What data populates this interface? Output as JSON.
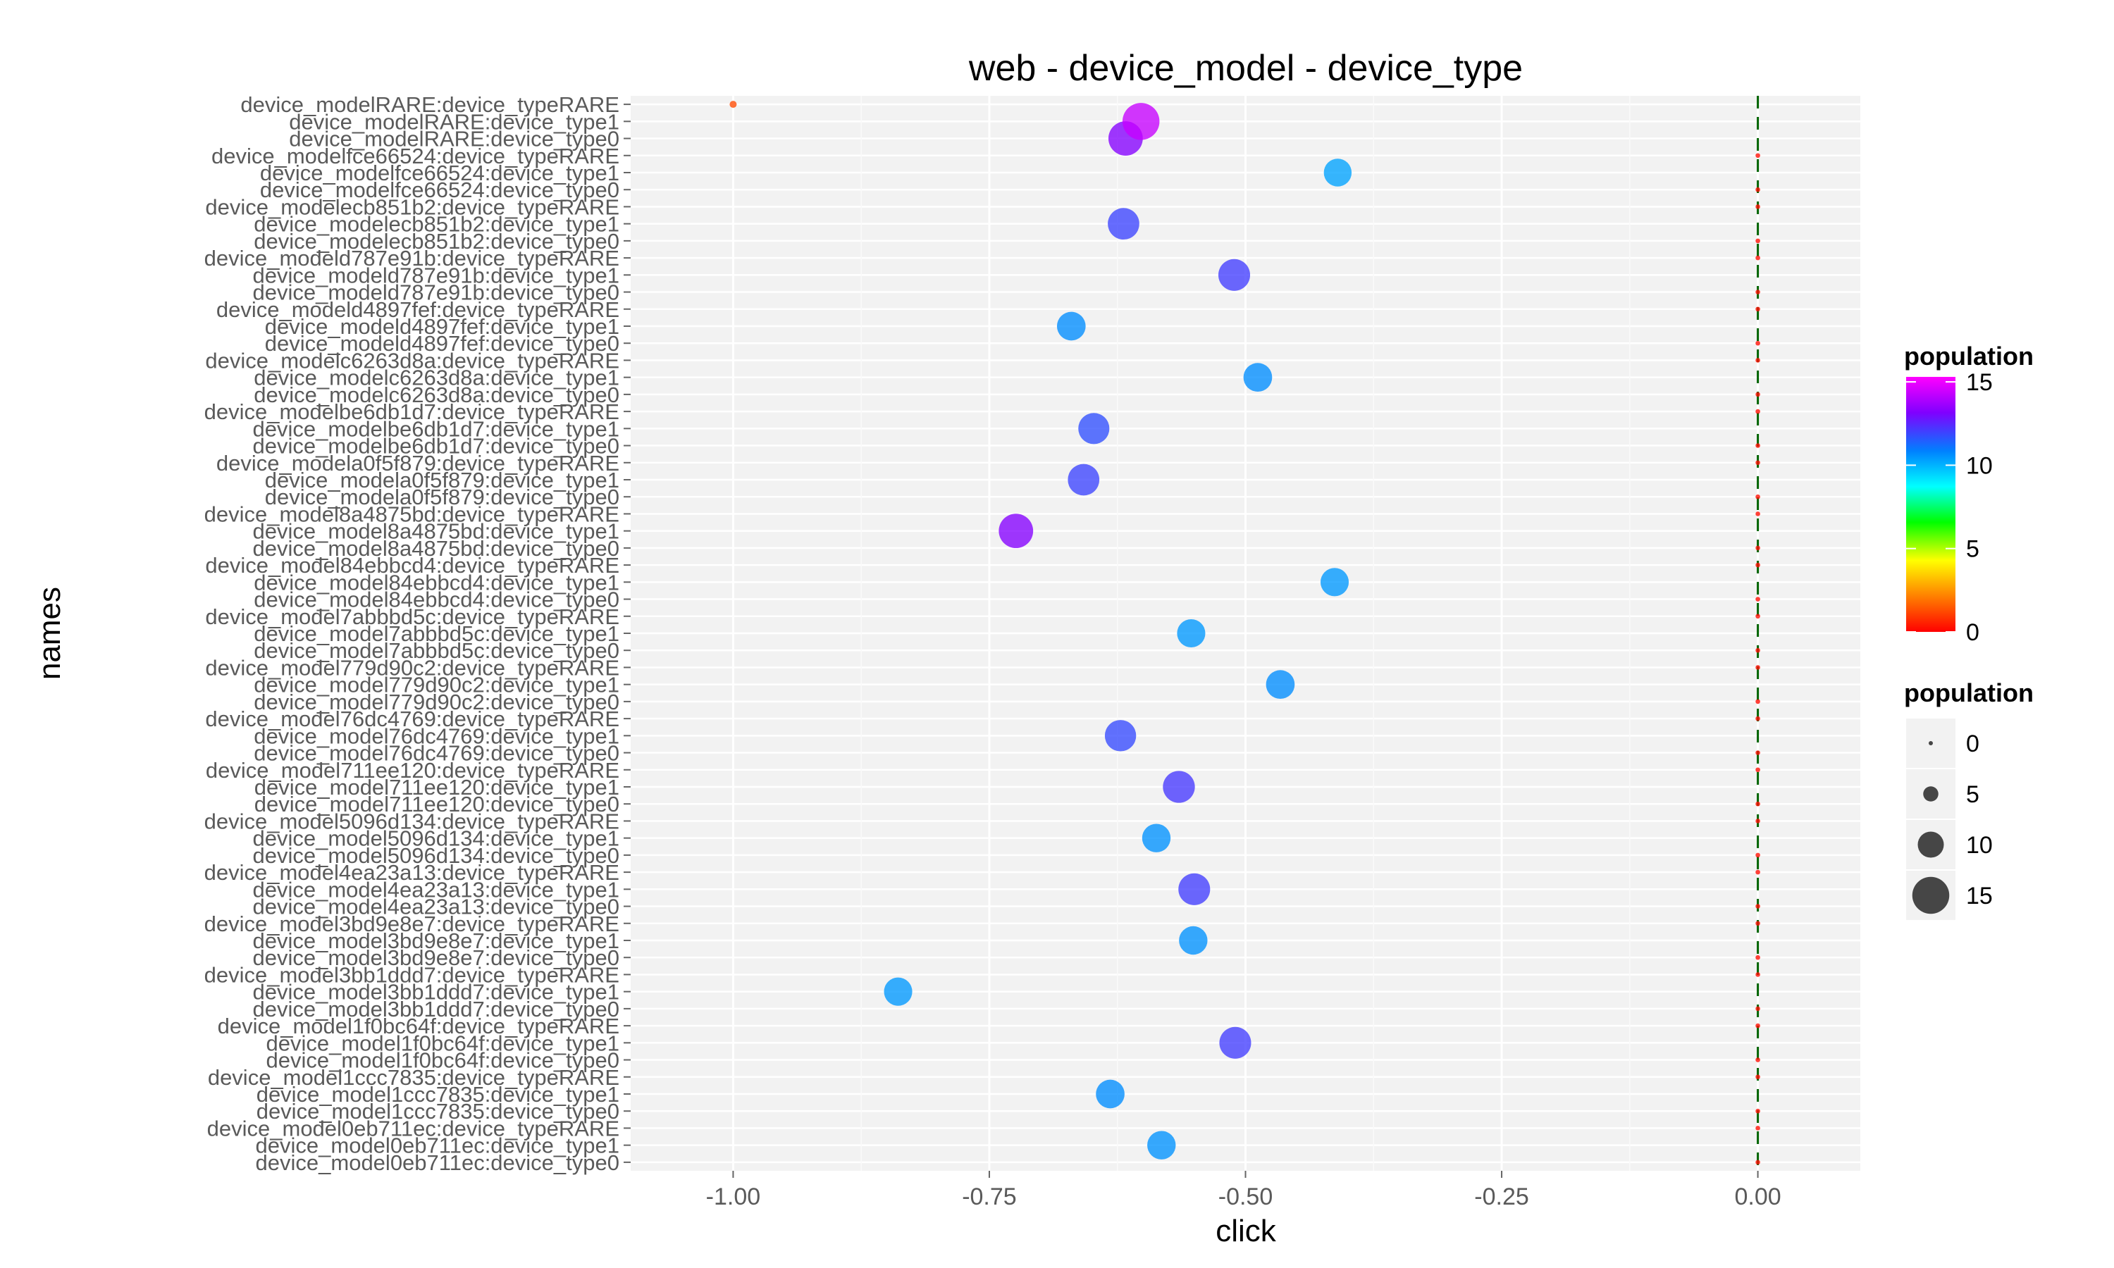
{
  "chart_data": {
    "type": "scatter",
    "title": "web - device_model - device_type",
    "xlabel": "click",
    "ylabel": "names",
    "xlim": [
      -1.1,
      0.1
    ],
    "x_ticks": [
      -1.0,
      -0.75,
      -0.5,
      -0.25,
      0.0
    ],
    "x_tick_labels": [
      "-1.00",
      "-0.75",
      "-0.50",
      "-0.25",
      "0.00"
    ],
    "reference_line_x": 0.0,
    "grid": true,
    "legend_placement": "right",
    "color_legend": {
      "title": "population",
      "breaks": [
        0,
        5,
        10,
        15
      ],
      "labels": [
        "0",
        "5",
        "10",
        "15"
      ],
      "colors": [
        "#ff0000",
        "#ff8000",
        "#ffff00",
        "#00ff00",
        "#00ffff",
        "#0080ff",
        "#8000ff",
        "#ff00ff"
      ]
    },
    "size_legend": {
      "title": "population",
      "breaks": [
        0,
        5,
        10,
        15
      ],
      "labels": [
        "0",
        "5",
        "10",
        "15"
      ]
    },
    "names": [
      "device_modelRARE:device_typeRARE",
      "device_modelRARE:device_type1",
      "device_modelRARE:device_type0",
      "device_modelfce66524:device_typeRARE",
      "device_modelfce66524:device_type1",
      "device_modelfce66524:device_type0",
      "device_modelecb851b2:device_typeRARE",
      "device_modelecb851b2:device_type1",
      "device_modelecb851b2:device_type0",
      "device_modeld787e91b:device_typeRARE",
      "device_modeld787e91b:device_type1",
      "device_modeld787e91b:device_type0",
      "device_modeld4897fef:device_typeRARE",
      "device_modeld4897fef:device_type1",
      "device_modeld4897fef:device_type0",
      "device_modelc6263d8a:device_typeRARE",
      "device_modelc6263d8a:device_type1",
      "device_modelc6263d8a:device_type0",
      "device_modelbe6db1d7:device_typeRARE",
      "device_modelbe6db1d7:device_type1",
      "device_modelbe6db1d7:device_type0",
      "device_modela0f5f879:device_typeRARE",
      "device_modela0f5f879:device_type1",
      "device_modela0f5f879:device_type0",
      "device_model8a4875bd:device_typeRARE",
      "device_model8a4875bd:device_type1",
      "device_model8a4875bd:device_type0",
      "device_model84ebbcd4:device_typeRARE",
      "device_model84ebbcd4:device_type1",
      "device_model84ebbcd4:device_type0",
      "device_model7abbbd5c:device_typeRARE",
      "device_model7abbbd5c:device_type1",
      "device_model7abbbd5c:device_type0",
      "device_model779d90c2:device_typeRARE",
      "device_model779d90c2:device_type1",
      "device_model779d90c2:device_type0",
      "device_model76dc4769:device_typeRARE",
      "device_model76dc4769:device_type1",
      "device_model76dc4769:device_type0",
      "device_model711ee120:device_typeRARE",
      "device_model711ee120:device_type1",
      "device_model711ee120:device_type0",
      "device_model5096d134:device_typeRARE",
      "device_model5096d134:device_type1",
      "device_model5096d134:device_type0",
      "device_model4ea23a13:device_typeRARE",
      "device_model4ea23a13:device_type1",
      "device_model4ea23a13:device_type0",
      "device_model3bd9e8e7:device_typeRARE",
      "device_model3bd9e8e7:device_type1",
      "device_model3bd9e8e7:device_type0",
      "device_model3bb1ddd7:device_typeRARE",
      "device_model3bb1ddd7:device_type1",
      "device_model3bb1ddd7:device_type0",
      "device_model1f0bc64f:device_typeRARE",
      "device_model1f0bc64f:device_type1",
      "device_model1f0bc64f:device_type0",
      "device_model1ccc7835:device_typeRARE",
      "device_model1ccc7835:device_type1",
      "device_model1ccc7835:device_type0",
      "device_model0eb711ec:device_typeRARE",
      "device_model0eb711ec:device_type1",
      "device_model0eb711ec:device_type0"
    ],
    "points": [
      {
        "name": "device_modelRARE:device_typeRARE",
        "x": -1.0,
        "population": 1.3
      },
      {
        "name": "device_modelRARE:device_type1",
        "x": -0.602,
        "population": 15.0
      },
      {
        "name": "device_modelRARE:device_type0",
        "x": -0.617,
        "population": 13.8
      },
      {
        "name": "device_modelfce66524:device_type1",
        "x": -0.41,
        "population": 10.8
      },
      {
        "name": "device_modelecb851b2:device_type1",
        "x": -0.619,
        "population": 12.5
      },
      {
        "name": "device_modeld787e91b:device_type1",
        "x": -0.511,
        "population": 12.6
      },
      {
        "name": "device_modeld4897fef:device_type1",
        "x": -0.67,
        "population": 11.2
      },
      {
        "name": "device_modelc6263d8a:device_type1",
        "x": -0.488,
        "population": 11.2
      },
      {
        "name": "device_modelbe6db1d7:device_type1",
        "x": -0.648,
        "population": 12.3
      },
      {
        "name": "device_modela0f5f879:device_type1",
        "x": -0.658,
        "population": 12.5
      },
      {
        "name": "device_model8a4875bd:device_type1",
        "x": -0.724,
        "population": 13.8
      },
      {
        "name": "device_model84ebbcd4:device_type1",
        "x": -0.413,
        "population": 11.0
      },
      {
        "name": "device_model7abbbd5c:device_type1",
        "x": -0.553,
        "population": 11.0
      },
      {
        "name": "device_model779d90c2:device_type1",
        "x": -0.466,
        "population": 11.2
      },
      {
        "name": "device_model76dc4769:device_type1",
        "x": -0.622,
        "population": 12.4
      },
      {
        "name": "device_model711ee120:device_type1",
        "x": -0.565,
        "population": 12.7
      },
      {
        "name": "device_model5096d134:device_type1",
        "x": -0.587,
        "population": 11.1
      },
      {
        "name": "device_model4ea23a13:device_type1",
        "x": -0.55,
        "population": 12.6
      },
      {
        "name": "device_model3bd9e8e7:device_type1",
        "x": -0.551,
        "population": 11.1
      },
      {
        "name": "device_model3bb1ddd7:device_type1",
        "x": -0.839,
        "population": 11.0
      },
      {
        "name": "device_model1f0bc64f:device_type1",
        "x": -0.51,
        "population": 12.6
      },
      {
        "name": "device_model1ccc7835:device_type1",
        "x": -0.632,
        "population": 11.2
      },
      {
        "name": "device_model0eb711ec:device_type1",
        "x": -0.582,
        "population": 11.1
      },
      {
        "name": "device_modelfce66524:device_typeRARE",
        "x": 0.0,
        "population": 0.2
      },
      {
        "name": "device_modelfce66524:device_type0",
        "x": 0.0,
        "population": 0.2
      },
      {
        "name": "device_modelecb851b2:device_typeRARE",
        "x": 0.0,
        "population": 0.2
      },
      {
        "name": "device_modelecb851b2:device_type0",
        "x": 0.0,
        "population": 0.2
      },
      {
        "name": "device_modeld787e91b:device_typeRARE",
        "x": 0.0,
        "population": 0.2
      },
      {
        "name": "device_modeld787e91b:device_type0",
        "x": 0.0,
        "population": 0.2
      },
      {
        "name": "device_modeld4897fef:device_typeRARE",
        "x": 0.0,
        "population": 0.2
      },
      {
        "name": "device_modeld4897fef:device_type0",
        "x": 0.0,
        "population": 0.2
      },
      {
        "name": "device_modelc6263d8a:device_typeRARE",
        "x": 0.0,
        "population": 0.2
      },
      {
        "name": "device_modelc6263d8a:device_type0",
        "x": 0.0,
        "population": 0.2
      },
      {
        "name": "device_modelbe6db1d7:device_typeRARE",
        "x": 0.0,
        "population": 0.2
      },
      {
        "name": "device_modelbe6db1d7:device_type0",
        "x": 0.0,
        "population": 0.2
      },
      {
        "name": "device_modela0f5f879:device_typeRARE",
        "x": 0.0,
        "population": 0.2
      },
      {
        "name": "device_modela0f5f879:device_type0",
        "x": 0.0,
        "population": 0.2
      },
      {
        "name": "device_model8a4875bd:device_typeRARE",
        "x": 0.0,
        "population": 0.2
      },
      {
        "name": "device_model8a4875bd:device_type0",
        "x": 0.0,
        "population": 0.2
      },
      {
        "name": "device_model84ebbcd4:device_typeRARE",
        "x": 0.0,
        "population": 0.2
      },
      {
        "name": "device_model84ebbcd4:device_type0",
        "x": 0.0,
        "population": 0.2
      },
      {
        "name": "device_model7abbbd5c:device_typeRARE",
        "x": 0.0,
        "population": 0.2
      },
      {
        "name": "device_model7abbbd5c:device_type0",
        "x": 0.0,
        "population": 0.2
      },
      {
        "name": "device_model779d90c2:device_typeRARE",
        "x": 0.0,
        "population": 0.2
      },
      {
        "name": "device_model779d90c2:device_type0",
        "x": 0.0,
        "population": 0.2
      },
      {
        "name": "device_model76dc4769:device_typeRARE",
        "x": 0.0,
        "population": 0.2
      },
      {
        "name": "device_model76dc4769:device_type0",
        "x": 0.0,
        "population": 0.2
      },
      {
        "name": "device_model711ee120:device_typeRARE",
        "x": 0.0,
        "population": 0.2
      },
      {
        "name": "device_model711ee120:device_type0",
        "x": 0.0,
        "population": 0.2
      },
      {
        "name": "device_model5096d134:device_typeRARE",
        "x": 0.0,
        "population": 0.2
      },
      {
        "name": "device_model5096d134:device_type0",
        "x": 0.0,
        "population": 0.2
      },
      {
        "name": "device_model4ea23a13:device_typeRARE",
        "x": 0.0,
        "population": 0.2
      },
      {
        "name": "device_model4ea23a13:device_type0",
        "x": 0.0,
        "population": 0.2
      },
      {
        "name": "device_model3bd9e8e7:device_typeRARE",
        "x": 0.0,
        "population": 0.2
      },
      {
        "name": "device_model3bd9e8e7:device_type0",
        "x": 0.0,
        "population": 0.2
      },
      {
        "name": "device_model3bb1ddd7:device_typeRARE",
        "x": 0.0,
        "population": 0.2
      },
      {
        "name": "device_model3bb1ddd7:device_type0",
        "x": 0.0,
        "population": 0.2
      },
      {
        "name": "device_model1f0bc64f:device_typeRARE",
        "x": 0.0,
        "population": 0.2
      },
      {
        "name": "device_model1f0bc64f:device_type0",
        "x": 0.0,
        "population": 0.2
      },
      {
        "name": "device_model1ccc7835:device_typeRARE",
        "x": 0.0,
        "population": 0.2
      },
      {
        "name": "device_model1ccc7835:device_type0",
        "x": 0.0,
        "population": 0.2
      },
      {
        "name": "device_model0eb711ec:device_typeRARE",
        "x": 0.0,
        "population": 0.2
      },
      {
        "name": "device_model0eb711ec:device_type0",
        "x": 0.0,
        "population": 0.2
      }
    ]
  }
}
